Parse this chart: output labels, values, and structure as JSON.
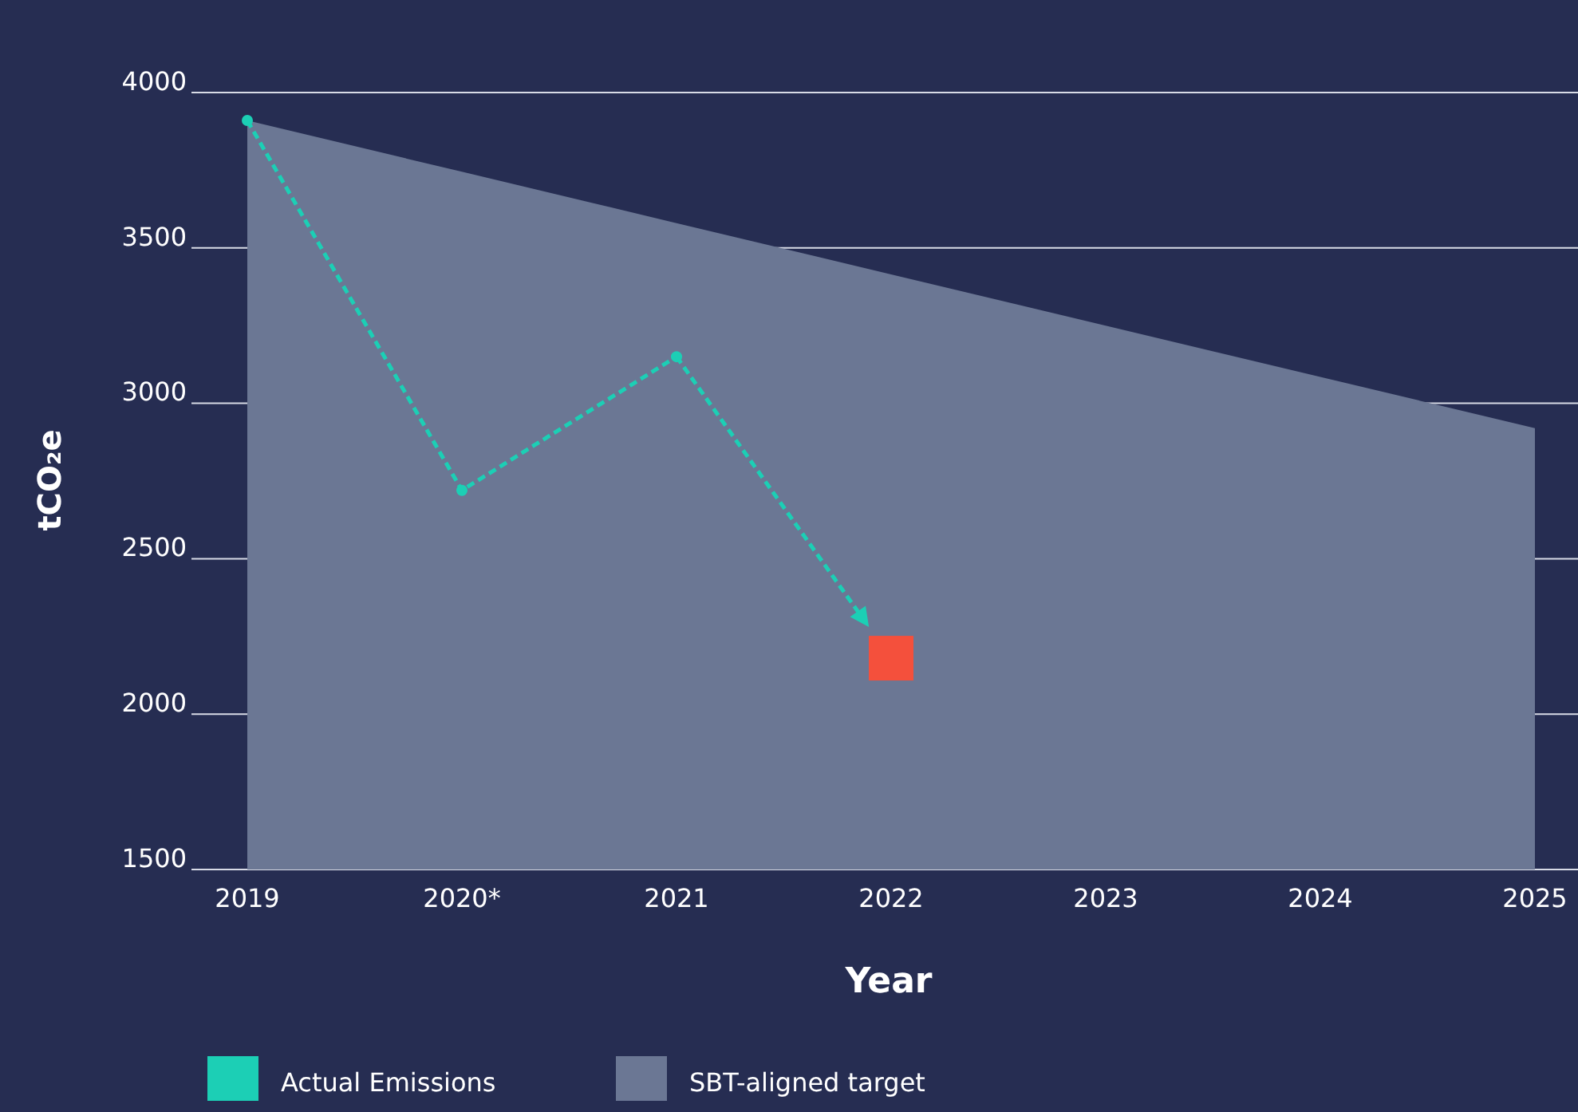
{
  "chart_data": {
    "type": "line",
    "xlabel": "Year",
    "ylabel": "tCO₂e",
    "categories": [
      "2019",
      "2020*",
      "2021",
      "2022",
      "2023",
      "2024",
      "2025"
    ],
    "ylim": [
      1500,
      4000
    ],
    "yticks": [
      1500,
      2000,
      2500,
      3000,
      3500,
      4000
    ],
    "grid": "y",
    "legend": "bottom left",
    "series": [
      {
        "name": "SBT-aligned target",
        "type": "area",
        "color": "#6b7794",
        "values": [
          3910,
          3745,
          3580,
          3415,
          3250,
          3085,
          2920
        ]
      },
      {
        "name": "Actual Emissions",
        "color": "#1ccfb5",
        "line_style": "dashed",
        "marker": "circle",
        "values": [
          3910,
          2720,
          3150,
          null,
          null,
          null,
          null
        ]
      },
      {
        "type": "scatter",
        "marker": "square",
        "color": "#f4503c",
        "values": [
          null,
          null,
          null,
          2180,
          null,
          null,
          null
        ]
      }
    ]
  }
}
